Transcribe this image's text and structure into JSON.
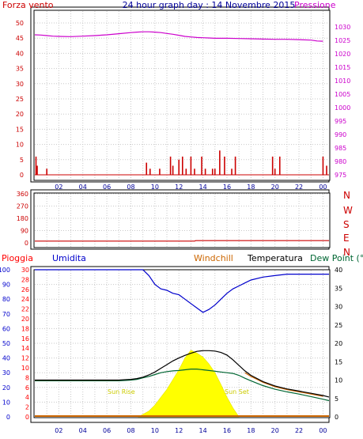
{
  "header": {
    "top_left": "Forza vento",
    "title": "24 hour graph day : 14 Novembre 2015",
    "top_right": "Pressione",
    "direction_letters": [
      "N",
      "W",
      "S",
      "E",
      "N"
    ]
  },
  "legend": {
    "pioggia": "Pioggia",
    "umidita": "Umidita",
    "windchill": "Windchill",
    "temperatura": "Temperatura",
    "dewpoint": "Dew Point (°C"
  },
  "annotations": {
    "sunrise": "Sun Rise",
    "sunset": "Sun Set"
  },
  "colors": {
    "wind": "#cc0000",
    "pressure": "#cc00cc",
    "humidity": "#0000cc",
    "temperature": "#000000",
    "dewpoint": "#006633",
    "windchill": "#cc6600",
    "solar": "#ffff00",
    "rain": "#ff0000"
  },
  "chart_data": [
    {
      "type": "line",
      "title": "24 hour graph day : 14 Novembre 2015",
      "x_ticks": [
        "02",
        "04",
        "06",
        "08",
        "10",
        "12",
        "14",
        "16",
        "18",
        "20",
        "22",
        "00"
      ],
      "y_left_label": "Forza vento",
      "y_left_ticks": [
        "0",
        "5",
        "10",
        "15",
        "20",
        "25",
        "30",
        "35",
        "40",
        "45",
        "50"
      ],
      "y_left_lim": [
        0,
        50
      ],
      "y_right_label": "Pressione",
      "y_right_ticks": [
        "975",
        "980",
        "985",
        "990",
        "995",
        "1000",
        "1005",
        "1010",
        "1015",
        "1020",
        "1025",
        "1030"
      ],
      "y_right_lim": [
        975,
        1031.5
      ],
      "grid": true,
      "series": [
        {
          "name": "Pressione",
          "axis": "right",
          "x": [
            0,
            0.5,
            1,
            1.5,
            2,
            3,
            4,
            5,
            6,
            7,
            8,
            8.5,
            9,
            9.5,
            10,
            10.5,
            11,
            11.5,
            12,
            12.5,
            13,
            13.5,
            14,
            14.5,
            15,
            16,
            17,
            18,
            19,
            20,
            21,
            22,
            23,
            23.5,
            24
          ],
          "y": [
            1027.1,
            1027.0,
            1026.8,
            1026.6,
            1026.5,
            1026.4,
            1026.6,
            1026.8,
            1027.1,
            1027.5,
            1027.9,
            1028.1,
            1028.2,
            1028.2,
            1028.1,
            1027.9,
            1027.6,
            1027.3,
            1026.9,
            1026.5,
            1026.3,
            1026.1,
            1026.0,
            1025.9,
            1025.8,
            1025.8,
            1025.7,
            1025.6,
            1025.5,
            1025.4,
            1025.4,
            1025.3,
            1025.1,
            1024.8,
            1024.7
          ]
        },
        {
          "name": "Forza vento",
          "axis": "left",
          "type": "bar",
          "x": [
            0.1,
            0.2,
            1.0,
            9.3,
            9.6,
            10.4,
            11.3,
            11.5,
            12.0,
            12.3,
            12.6,
            13.0,
            13.3,
            13.9,
            14.2,
            14.8,
            15.0,
            15.4,
            15.8,
            16.4,
            16.7,
            19.8,
            20.0,
            20.4,
            24.0,
            24.3
          ],
          "y": [
            6,
            3,
            2,
            4,
            2,
            2,
            6,
            3,
            5,
            6,
            2,
            6,
            2,
            6,
            2,
            2,
            2,
            8,
            6,
            2,
            6,
            6,
            2,
            6,
            6,
            3
          ]
        }
      ]
    },
    {
      "type": "line",
      "y_left_ticks": [
        "0",
        "90",
        "180",
        "270",
        "360"
      ],
      "y_left_lim": [
        0,
        360
      ],
      "series": [
        {
          "name": "Direzione vento",
          "x": [
            0,
            13.3,
            13.4,
            24.5
          ],
          "y": [
            13,
            13,
            16,
            16
          ]
        }
      ]
    },
    {
      "type": "line",
      "x_ticks": [
        "02",
        "04",
        "06",
        "08",
        "10",
        "12",
        "14",
        "16",
        "18",
        "20",
        "22",
        "00"
      ],
      "y_left_ticks": [
        "0",
        "10",
        "20",
        "30",
        "40",
        "50",
        "60",
        "70",
        "80",
        "90",
        "100"
      ],
      "y_left_lim": [
        0,
        100
      ],
      "y_mid_ticks": [
        "0",
        "2",
        "4",
        "6",
        "8",
        "10",
        "12",
        "14",
        "16",
        "18",
        "20",
        "22",
        "24",
        "26",
        "28",
        "30"
      ],
      "y_mid_lim": [
        0,
        30
      ],
      "y_right_ticks": [
        "0",
        "5",
        "10",
        "15",
        "20",
        "25",
        "30",
        "35",
        "40"
      ],
      "y_right_lim": [
        0,
        40
      ],
      "series": [
        {
          "name": "Umidita",
          "axis": "left",
          "x": [
            0,
            1,
            2,
            3,
            4,
            5,
            6,
            7,
            8,
            8.5,
            9,
            9.5,
            10,
            10.5,
            11,
            11.5,
            12,
            12.5,
            13,
            13.5,
            14,
            14.5,
            15,
            15.5,
            16,
            16.5,
            17,
            17.5,
            18,
            19,
            20,
            21,
            22,
            23,
            24,
            24.5
          ],
          "y": [
            100,
            100,
            100,
            100,
            100,
            100,
            100,
            100,
            100,
            100,
            100,
            96,
            90,
            87,
            86,
            84,
            83,
            80,
            77,
            74,
            71,
            73,
            76,
            80,
            84,
            87,
            89,
            91,
            93,
            95,
            96,
            97,
            97,
            97,
            97,
            97
          ]
        },
        {
          "name": "Temperatura",
          "axis": "right",
          "x": [
            0,
            1,
            2,
            3,
            4,
            5,
            6,
            7,
            8,
            8.5,
            9,
            9.5,
            10,
            10.5,
            11,
            11.5,
            12,
            12.5,
            13,
            13.5,
            14,
            14.5,
            15,
            15.5,
            16,
            16.5,
            17,
            17.5,
            18,
            19,
            20,
            21,
            22,
            23,
            24,
            24.5
          ],
          "y": [
            10,
            10,
            10,
            10,
            10,
            10,
            10,
            10,
            10.2,
            10.4,
            10.8,
            11.4,
            12.2,
            13.2,
            14.2,
            15.2,
            16,
            16.7,
            17.3,
            17.8,
            18,
            18,
            17.9,
            17.5,
            16.8,
            15.5,
            14,
            12.5,
            11.3,
            9.6,
            8.4,
            7.6,
            7.0,
            6.4,
            5.8,
            5.4
          ]
        },
        {
          "name": "Dew Point (°C",
          "axis": "right",
          "x": [
            0,
            1,
            2,
            3,
            4,
            5,
            6,
            7,
            8,
            8.5,
            9,
            9.5,
            10,
            10.5,
            11,
            11.5,
            12,
            12.5,
            13,
            13.5,
            14,
            14.5,
            15,
            15.5,
            16,
            16.5,
            17,
            17.5,
            18,
            19,
            20,
            21,
            22,
            23,
            24,
            24.5
          ],
          "y": [
            9.8,
            9.8,
            9.8,
            9.8,
            9.8,
            9.8,
            9.8,
            9.8,
            10,
            10.2,
            10.6,
            11,
            11.5,
            12,
            12.3,
            12.5,
            12.6,
            12.8,
            13,
            13,
            12.8,
            12.6,
            12.4,
            12.2,
            12.0,
            11.8,
            11.3,
            10.5,
            9.8,
            8.5,
            7.5,
            6.8,
            6.2,
            5.5,
            4.8,
            4.4
          ]
        },
        {
          "name": "Windchill",
          "axis": "right",
          "x": [
            17.5,
            18,
            19,
            20,
            21,
            22,
            23,
            24
          ],
          "y": [
            12.0,
            11.0,
            9.4,
            8.2,
            7.4,
            6.8,
            6.2,
            5.6
          ]
        },
        {
          "name": "Radiazione solare",
          "axis": "mid",
          "type": "area",
          "x": [
            8.6,
            9,
            9.5,
            10,
            10.5,
            11,
            11.5,
            12,
            12.5,
            13,
            13.5,
            14,
            14.5,
            15,
            15.5,
            16,
            16.5,
            17
          ],
          "y": [
            0,
            0.5,
            1.2,
            2.4,
            4.0,
            5.6,
            7.6,
            9.6,
            12.0,
            13.6,
            13.0,
            12.2,
            10.8,
            9.0,
            6.6,
            4.0,
            1.8,
            0
          ]
        },
        {
          "name": "Pioggia",
          "axis": "mid",
          "type": "bar",
          "x": [],
          "y": []
        }
      ]
    }
  ]
}
